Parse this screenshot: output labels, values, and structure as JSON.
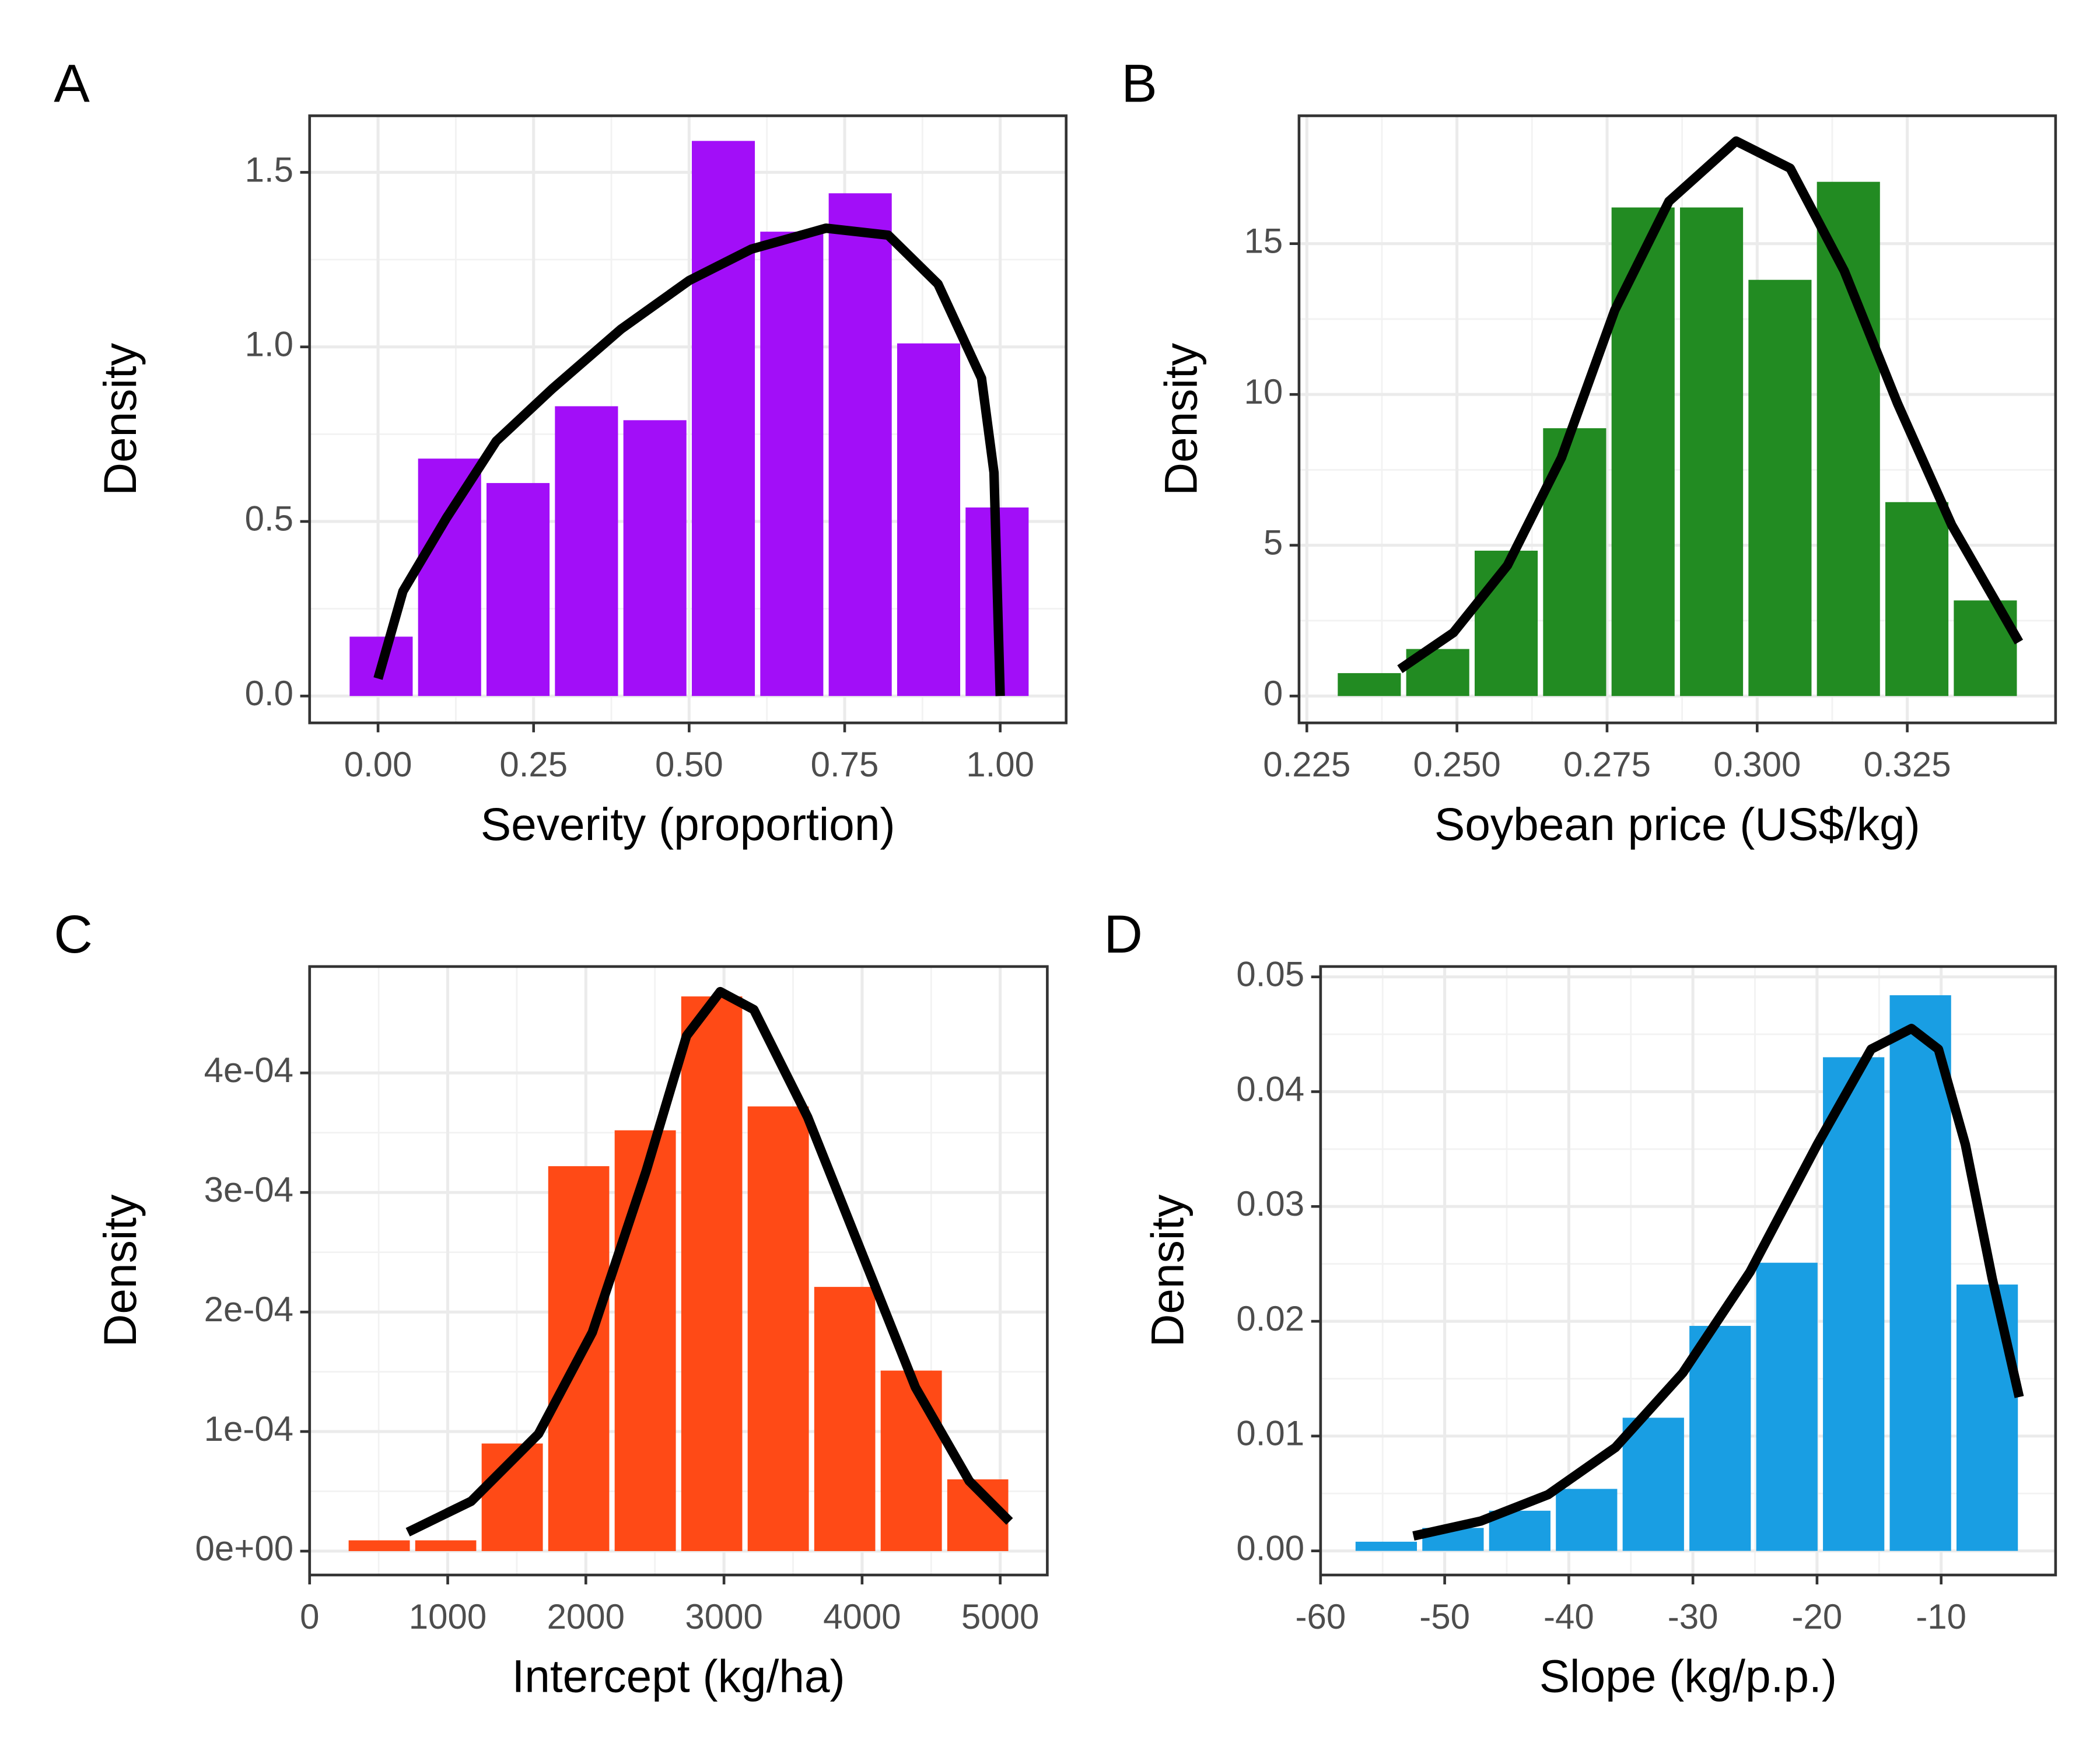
{
  "chart_data": [
    {
      "type": "histogram",
      "panel": "A",
      "xlabel": "Severity (proportion)",
      "ylabel": "Density",
      "bins": [
        -0.05,
        0.06,
        0.17,
        0.28,
        0.39,
        0.5,
        0.61,
        0.72,
        0.83,
        0.94,
        1.05
      ],
      "values": [
        0.17,
        0.68,
        0.61,
        0.83,
        0.79,
        1.59,
        1.33,
        1.44,
        1.01,
        0.54
      ],
      "color": "#a20ef8",
      "curve": {
        "color": "#000000",
        "x": [
          0,
          0.04,
          0.11,
          0.19,
          0.28,
          0.39,
          0.5,
          0.6,
          0.72,
          0.82,
          0.9,
          0.97,
          0.99,
          1.0
        ],
        "y": [
          0.05,
          0.3,
          0.51,
          0.73,
          0.88,
          1.05,
          1.19,
          1.28,
          1.34,
          1.32,
          1.18,
          0.91,
          0.64,
          0.0
        ]
      },
      "xlim": [
        -0.11,
        1.106
      ],
      "ylim": [
        -0.077,
        1.662
      ],
      "xticks": [
        {
          "value": 0,
          "label": "0.00"
        },
        {
          "value": 0.25,
          "label": "0.25"
        },
        {
          "value": 0.5,
          "label": "0.50"
        },
        {
          "value": 0.75,
          "label": "0.75"
        },
        {
          "value": 1,
          "label": "1.00"
        }
      ],
      "yticks": [
        {
          "value": 0,
          "label": "0.0"
        },
        0.5,
        {
          "value": 1,
          "label": "1.0"
        },
        1.5
      ],
      "grid": true
    },
    {
      "type": "histogram",
      "panel": "B",
      "xlabel": "Soybean price (US$/kg)",
      "ylabel": "Density",
      "bins": [
        0.2297,
        0.2411,
        0.2525,
        0.2639,
        0.2753,
        0.2867,
        0.2981,
        0.3095,
        0.3209,
        0.3323,
        0.3437
      ],
      "values": [
        0.76,
        1.56,
        4.82,
        8.88,
        16.2,
        16.2,
        13.8,
        17.05,
        6.43,
        3.17
      ],
      "color": "#228b22",
      "curve": {
        "color": "#000000",
        "x": [
          0.2405,
          0.2494,
          0.2584,
          0.2674,
          0.2763,
          0.2853,
          0.2965,
          0.3055,
          0.3145,
          0.3234,
          0.3324,
          0.3436
        ],
        "y": [
          0.89,
          2.1,
          4.33,
          7.9,
          12.8,
          16.4,
          18.4,
          17.5,
          14.1,
          9.69,
          5.67,
          1.79
        ]
      },
      "xlim": [
        0.2237,
        0.3497
      ],
      "ylim": [
        -0.89,
        19.24
      ],
      "xticks": [
        0.225,
        {
          "value": 0.25,
          "label": "0.250"
        },
        0.275,
        {
          "value": 0.3,
          "label": "0.300"
        },
        0.325
      ],
      "yticks": [
        0,
        5,
        10,
        15
      ],
      "grid": true
    },
    {
      "type": "histogram",
      "panel": "C",
      "xlabel": "Intercept (kg/ha)",
      "ylabel": "Density",
      "bins": [
        263,
        745,
        1226,
        1708,
        2189,
        2671,
        3152,
        3634,
        4115,
        4597,
        5078
      ],
      "values": [
        9e-06,
        9e-06,
        9e-05,
        0.000322,
        0.000352,
        0.000464,
        0.000372,
        0.000221,
        0.000151,
        6e-05
      ],
      "color": "#ff4a16",
      "curve": {
        "color": "#000000",
        "x": [
          711,
          1170,
          1657,
          2047,
          2437,
          2729,
          2973,
          3216,
          3606,
          3996,
          4386,
          4776,
          5068
        ],
        "y": [
          1.58e-05,
          4.17e-05,
          9.8e-05,
          0.000183,
          0.000318,
          0.000431,
          0.000468,
          0.000453,
          0.000363,
          0.00025,
          0.000137,
          5.86e-05,
          2.48e-05
        ]
      },
      "xlim": [
        0,
        5341
      ],
      "ylim": [
        -2e-05,
        0.000489
      ],
      "xticks": [
        0,
        1000,
        2000,
        3000,
        4000,
        5000
      ],
      "yticks": [
        {
          "value": 0,
          "label": "0e+00"
        },
        {
          "value": 0.0001,
          "label": "1e-04"
        },
        {
          "value": 0.0002,
          "label": "2e-04"
        },
        {
          "value": 0.0003,
          "label": "3e-04"
        },
        {
          "value": 0.0004,
          "label": "4e-04"
        }
      ],
      "grid": true
    },
    {
      "type": "histogram",
      "panel": "D",
      "xlabel": "Slope (kg/p.p.)",
      "ylabel": "Density",
      "bins": [
        -57.4,
        -52.02,
        -46.64,
        -41.26,
        -35.88,
        -30.5,
        -25.12,
        -19.74,
        -14.36,
        -8.98,
        -3.6
      ],
      "values": [
        0.0008,
        0.002,
        0.0035,
        0.0054,
        0.0116,
        0.0196,
        0.0251,
        0.043,
        0.0484,
        0.0232
      ],
      "color": "#199ee3",
      "curve": {
        "color": "#000000",
        "x": [
          -52.52,
          -47.09,
          -41.67,
          -36.25,
          -30.82,
          -25.4,
          -19.98,
          -15.64,
          -12.39,
          -10.22,
          -8.05,
          -5.88,
          -3.71
        ],
        "y": [
          0.0013,
          0.0026,
          0.0049,
          0.009,
          0.0155,
          0.0243,
          0.0354,
          0.0437,
          0.0455,
          0.0437,
          0.0354,
          0.0237,
          0.0134
        ]
      },
      "xlim": [
        -60,
        -0.78
      ],
      "ylim": [
        -0.0021,
        0.0509
      ],
      "xticks": [
        -60,
        -50,
        -40,
        -30,
        -20,
        -10
      ],
      "yticks": [
        {
          "value": 0,
          "label": "0.00"
        },
        0.01,
        0.02,
        0.03,
        0.04,
        0.05
      ],
      "grid": true
    }
  ]
}
